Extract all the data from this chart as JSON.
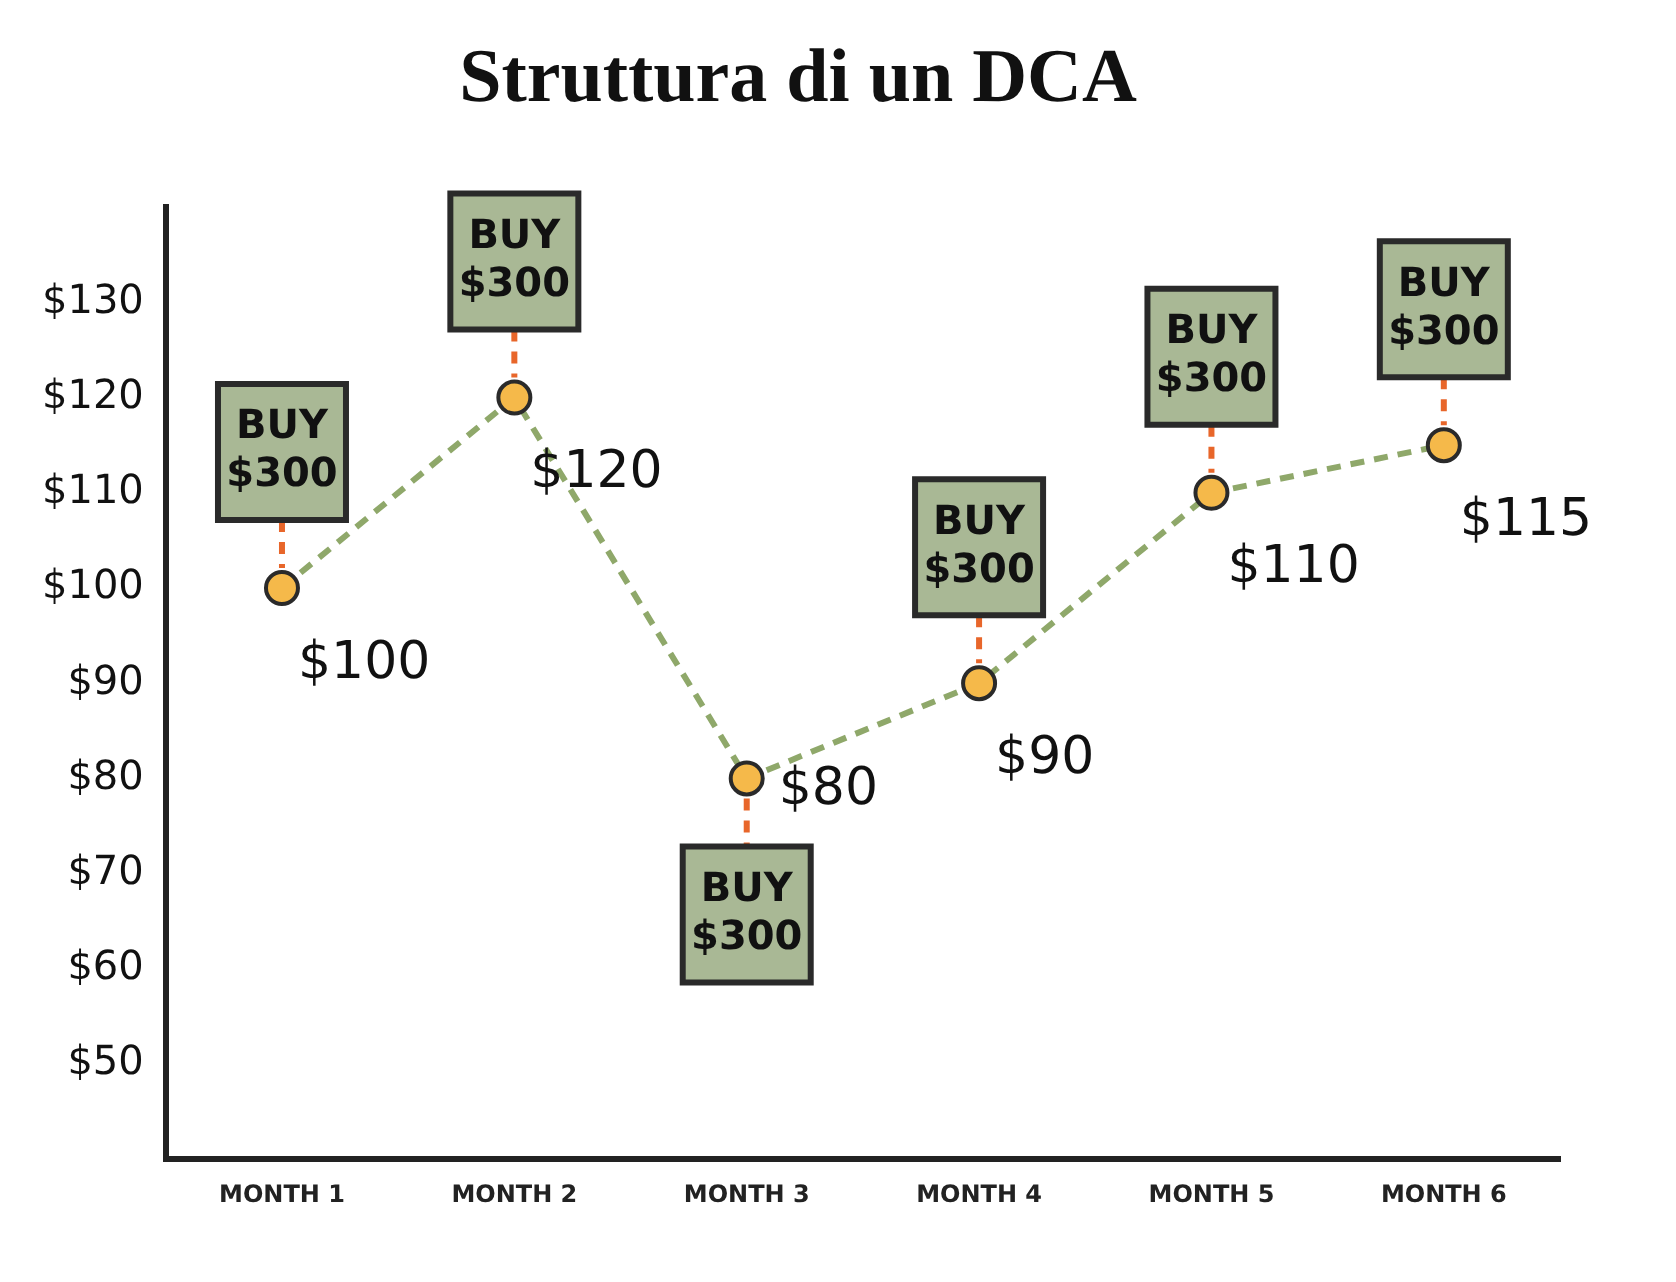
{
  "chart_data": {
    "type": "line",
    "title": "Struttura di un DCA",
    "categories": [
      "MONTH 1",
      "MONTH 2",
      "MONTH 3",
      "MONTH 4",
      "MONTH 5",
      "MONTH 6"
    ],
    "series": [
      {
        "color": "#8fa86a",
        "values": [
          100,
          120,
          80,
          90,
          110,
          115
        ],
        "value_labels": [
          "$100",
          "$120",
          "$80",
          "$90",
          "$110",
          "$115"
        ]
      }
    ],
    "ylim": [
      40,
      140
    ],
    "yticks": [
      {
        "value": 50,
        "label": "$50"
      },
      {
        "value": 60,
        "label": "$60"
      },
      {
        "value": 70,
        "label": "$70"
      },
      {
        "value": 80,
        "label": "$80"
      },
      {
        "value": 90,
        "label": "$90"
      },
      {
        "value": 100,
        "label": "$100"
      },
      {
        "value": 110,
        "label": "$110"
      },
      {
        "value": 120,
        "label": "$120"
      },
      {
        "value": 130,
        "label": "$130"
      }
    ],
    "grid": false,
    "legend": false,
    "marker": "circle",
    "line_style": "dashed",
    "annotations": [
      {
        "text": "BUY $300",
        "x": "MONTH 1",
        "y": 100
      },
      {
        "text": "BUY $300",
        "x": "MONTH 2",
        "y": 120
      },
      {
        "text": "BUY $300",
        "x": "MONTH 3",
        "y": 80
      },
      {
        "text": "BUY $300",
        "x": "MONTH 4",
        "y": 90
      },
      {
        "text": "BUY $300",
        "x": "MONTH 5",
        "y": 110
      },
      {
        "text": "BUY $300",
        "x": "MONTH 6",
        "y": 115
      }
    ]
  }
}
